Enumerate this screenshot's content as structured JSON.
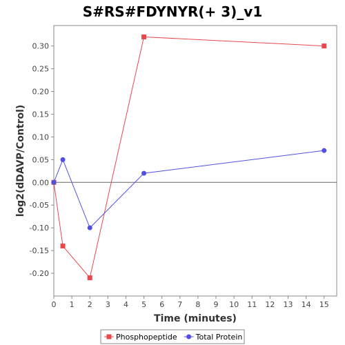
{
  "chart_data": {
    "type": "line",
    "title": "S#RS#FDYNYR(+ 3)_v1",
    "xlabel": "Time (minutes)",
    "ylabel": "log2(dDAVP/Control)",
    "xlim": [
      0,
      15.7
    ],
    "ylim": [
      -0.25,
      0.345
    ],
    "xticks": [
      0,
      1,
      2,
      3,
      4,
      5,
      6,
      7,
      8,
      9,
      10,
      11,
      12,
      13,
      14,
      15
    ],
    "yticks": [
      -0.2,
      -0.15,
      -0.1,
      -0.05,
      0.0,
      0.05,
      0.1,
      0.15,
      0.2,
      0.25,
      0.3
    ],
    "ytick_labels": [
      "-0.20",
      "-0.15",
      "-0.10",
      "-0.05",
      "0.00",
      "0.05",
      "0.10",
      "0.15",
      "0.20",
      "0.25",
      "0.30"
    ],
    "grid": false,
    "zero_line": true,
    "legend_position": "bottom",
    "series": [
      {
        "name": "Phosphopeptide",
        "color": "#e8474c",
        "marker": "square",
        "x": [
          0,
          0.5,
          2,
          5,
          15
        ],
        "y": [
          0.0,
          -0.14,
          -0.21,
          0.32,
          0.3
        ]
      },
      {
        "name": "Total Protein",
        "color": "#4f4fe3",
        "marker": "circle",
        "x": [
          0,
          0.5,
          2,
          5,
          15
        ],
        "y": [
          0.0,
          0.05,
          -0.1,
          0.02,
          0.07
        ]
      }
    ]
  }
}
